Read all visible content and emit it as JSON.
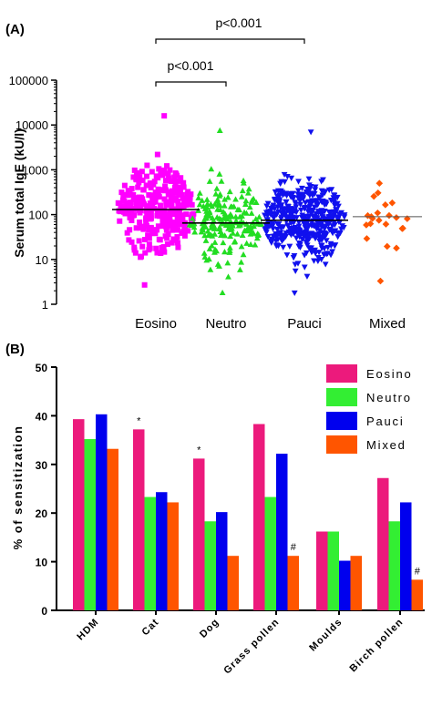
{
  "chart_data": [
    {
      "type": "scatter",
      "panel": "(A)",
      "ylabel": "Serum total IgE (kU/l)",
      "yscale": "log",
      "ylim": [
        1,
        100000
      ],
      "y_ticks": [
        "1",
        "10",
        "100",
        "1000",
        "10000",
        "100000"
      ],
      "categories": [
        "Eosino",
        "Neutro",
        "Pauci",
        "Mixed"
      ],
      "series": [
        {
          "name": "Eosino",
          "color": "#ff00ff",
          "marker": "square",
          "median": 130,
          "n_points": 330,
          "range": [
            2.7,
            16000
          ]
        },
        {
          "name": "Neutro",
          "color": "#22dd22",
          "marker": "triangle-up",
          "median": 65,
          "n_points": 190,
          "range": [
            1.8,
            7500
          ]
        },
        {
          "name": "Pauci",
          "color": "#1010ee",
          "marker": "triangle-down",
          "median": 75,
          "n_points": 430,
          "range": [
            1.8,
            7000
          ]
        },
        {
          "name": "Mixed",
          "color": "#ff5500",
          "marker": "diamond",
          "median": 90,
          "n_points": 22,
          "range": [
            3.3,
            500
          ]
        }
      ],
      "annotations": [
        {
          "text": "p<0.001",
          "from": "Eosino",
          "to": "Neutro"
        },
        {
          "text": "p<0.001",
          "from": "Eosino",
          "to": "Pauci"
        }
      ]
    },
    {
      "type": "bar",
      "panel": "(B)",
      "ylabel": "% of sensitization",
      "ylim": [
        0,
        50
      ],
      "y_ticks": [
        "0",
        "10",
        "20",
        "30",
        "40",
        "50"
      ],
      "categories": [
        "HDM",
        "Cat",
        "Dog",
        "Grass pollen",
        "Moulds",
        "Birch pollen"
      ],
      "series": [
        {
          "name": "Eosino",
          "color": "#ec1a7c",
          "values": [
            39.3,
            37.2,
            31.2,
            38.3,
            16.2,
            27.2
          ]
        },
        {
          "name": "Neutro",
          "color": "#33ee33",
          "values": [
            35.2,
            23.3,
            18.3,
            23.3,
            16.2,
            18.3
          ]
        },
        {
          "name": "Pauci",
          "color": "#0000ee",
          "values": [
            40.3,
            24.3,
            20.2,
            32.2,
            10.2,
            22.2
          ]
        },
        {
          "name": "Mixed",
          "color": "#ff5500",
          "values": [
            33.2,
            22.2,
            11.2,
            11.2,
            11.2,
            6.3
          ]
        }
      ],
      "annotations": [
        {
          "text": "*",
          "category": "Cat",
          "series": "Eosino"
        },
        {
          "text": "*",
          "category": "Dog",
          "series": "Eosino"
        },
        {
          "text": "#",
          "category": "Grass pollen",
          "series": "Mixed"
        },
        {
          "text": "#",
          "category": "Birch pollen",
          "series": "Mixed"
        }
      ],
      "legend_position": "top-right"
    }
  ]
}
